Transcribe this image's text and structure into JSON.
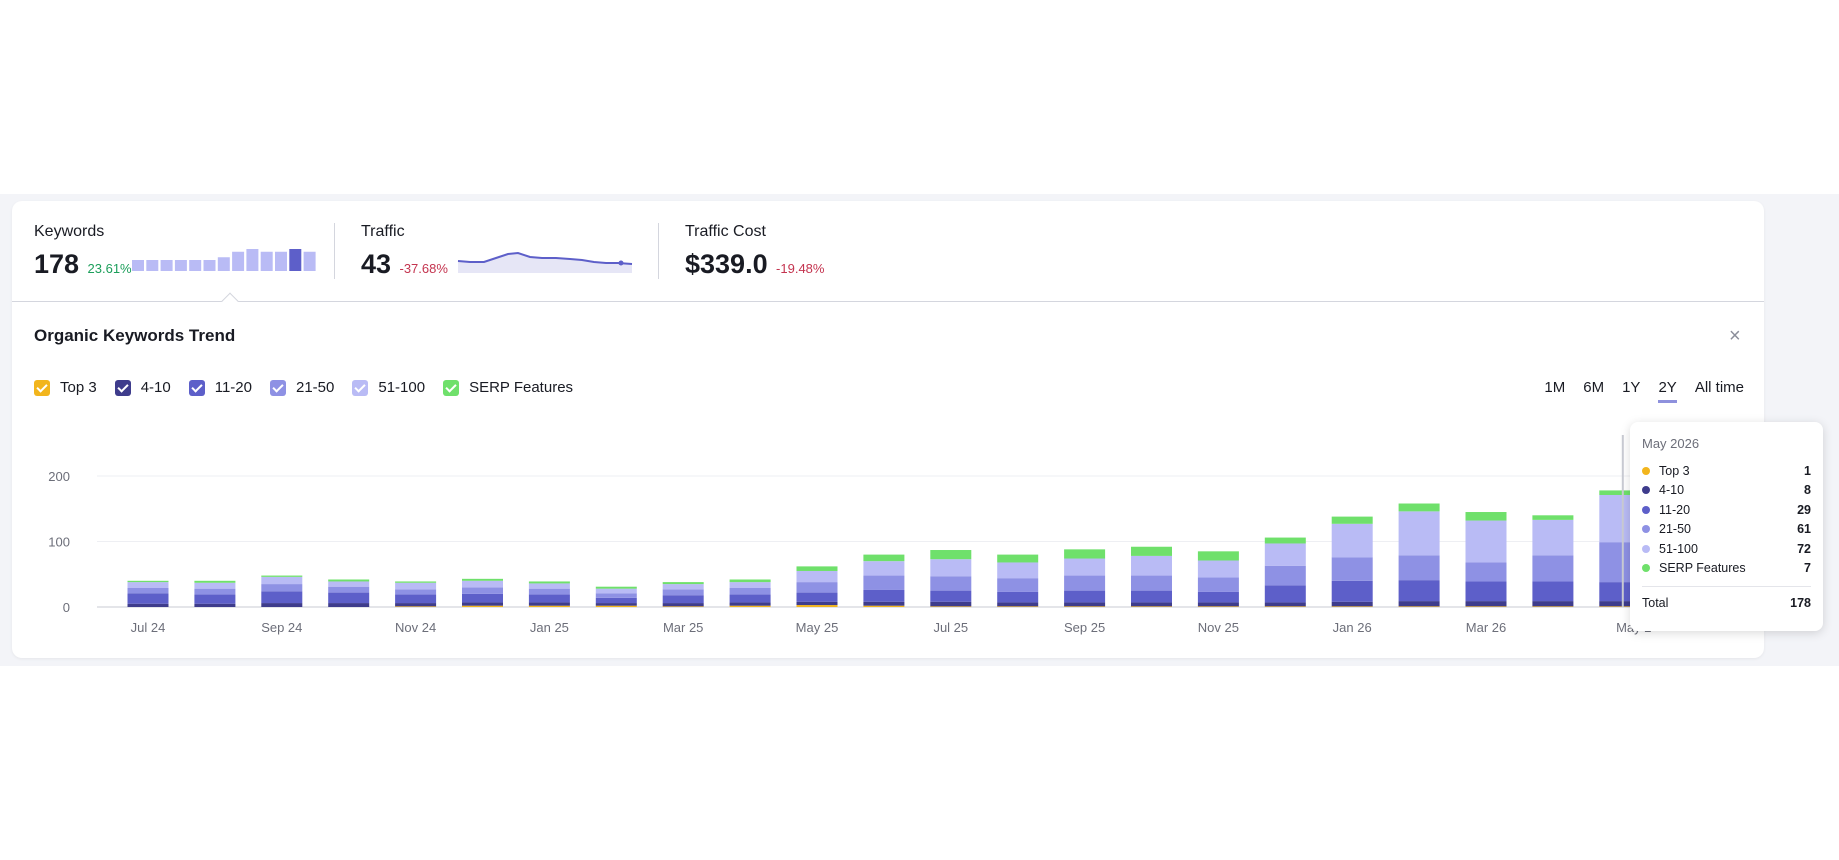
{
  "summary": {
    "keywords": {
      "label": "Keywords",
      "value": "178",
      "delta": "23.61%",
      "spark": [
        8,
        8,
        8,
        8,
        8,
        8,
        10,
        14,
        16,
        14,
        14,
        16,
        14
      ]
    },
    "traffic": {
      "label": "Traffic",
      "value": "43",
      "delta": "-37.68%"
    },
    "traffic_cost": {
      "label": "Traffic Cost",
      "value": "$339.0",
      "delta": "-19.48%"
    }
  },
  "trend": {
    "title": "Organic Keywords Trend",
    "close": "×",
    "legend": [
      {
        "label": "Top 3",
        "color": "#f2b51d"
      },
      {
        "label": "4-10",
        "color": "#3e3c8c"
      },
      {
        "label": "11-20",
        "color": "#5d5fc9"
      },
      {
        "label": "21-50",
        "color": "#8e91e4"
      },
      {
        "label": "51-100",
        "color": "#b9bbf5"
      },
      {
        "label": "SERP Features",
        "color": "#6fe06b"
      }
    ],
    "ranges": [
      "1M",
      "6M",
      "1Y",
      "2Y",
      "All time"
    ],
    "active_range": "2Y"
  },
  "chart_data": {
    "type": "bar",
    "stacked": true,
    "yticks": [
      0,
      100,
      200
    ],
    "ylim": [
      0,
      230
    ],
    "xtick_labels": [
      "Jul 24",
      "Sep 24",
      "Nov 24",
      "Jan 25",
      "Mar 25",
      "May 25",
      "Jul 25",
      "Sep 25",
      "Nov 25",
      "Jan 26",
      "Mar 26",
      "May 2"
    ],
    "categories": [
      "Jul 24",
      "Aug 24",
      "Sep 24",
      "Oct 24",
      "Nov 24",
      "Dec 24",
      "Jan 25",
      "Feb 25",
      "Mar 25",
      "Apr 25",
      "May 25",
      "Jun 25",
      "Jul 25",
      "Aug 25",
      "Sep 25",
      "Oct 25",
      "Nov 25",
      "Dec 25",
      "Jan 26",
      "Feb 26",
      "Mar 26",
      "Apr 26",
      "May 26"
    ],
    "series": [
      {
        "name": "Top 3",
        "color": "#f2b51d",
        "values": [
          0,
          0,
          0,
          0,
          1,
          2,
          2,
          2,
          1,
          2,
          3,
          2,
          1,
          1,
          1,
          1,
          1,
          1,
          1,
          1,
          1,
          1,
          1
        ]
      },
      {
        "name": "4-10",
        "color": "#3e3c8c",
        "values": [
          5,
          5,
          6,
          6,
          5,
          5,
          5,
          4,
          5,
          5,
          5,
          6,
          7,
          6,
          6,
          6,
          6,
          6,
          7,
          8,
          8,
          8,
          8
        ]
      },
      {
        "name": "11-20",
        "color": "#5d5fc9",
        "values": [
          16,
          14,
          18,
          16,
          13,
          13,
          12,
          8,
          12,
          12,
          14,
          18,
          17,
          16,
          18,
          18,
          16,
          26,
          32,
          32,
          30,
          30,
          29
        ]
      },
      {
        "name": "21-50",
        "color": "#8e91e4",
        "values": [
          8,
          9,
          11,
          9,
          8,
          10,
          9,
          7,
          9,
          10,
          16,
          22,
          22,
          21,
          23,
          23,
          22,
          30,
          36,
          38,
          29,
          40,
          61
        ]
      },
      {
        "name": "51-100",
        "color": "#b9bbf5",
        "values": [
          9,
          9,
          11,
          8,
          10,
          10,
          8,
          7,
          8,
          9,
          17,
          22,
          26,
          24,
          26,
          30,
          26,
          34,
          51,
          67,
          64,
          54,
          72
        ]
      },
      {
        "name": "SERP Features",
        "color": "#6fe06b",
        "values": [
          2,
          3,
          2,
          3,
          2,
          3,
          3,
          3,
          3,
          4,
          7,
          10,
          14,
          12,
          14,
          14,
          14,
          9,
          11,
          12,
          13,
          7,
          7
        ]
      }
    ]
  },
  "tooltip": {
    "date": "May 2026",
    "rows": [
      {
        "label": "Top 3",
        "value": "1",
        "color": "#f2b51d"
      },
      {
        "label": "4-10",
        "value": "8",
        "color": "#3e3c8c"
      },
      {
        "label": "11-20",
        "value": "29",
        "color": "#5d5fc9"
      },
      {
        "label": "21-50",
        "value": "61",
        "color": "#8e91e4"
      },
      {
        "label": "51-100",
        "value": "72",
        "color": "#b9bbf5"
      },
      {
        "label": "SERP Features",
        "value": "7",
        "color": "#6fe06b"
      }
    ],
    "total_label": "Total",
    "total_value": "178"
  }
}
